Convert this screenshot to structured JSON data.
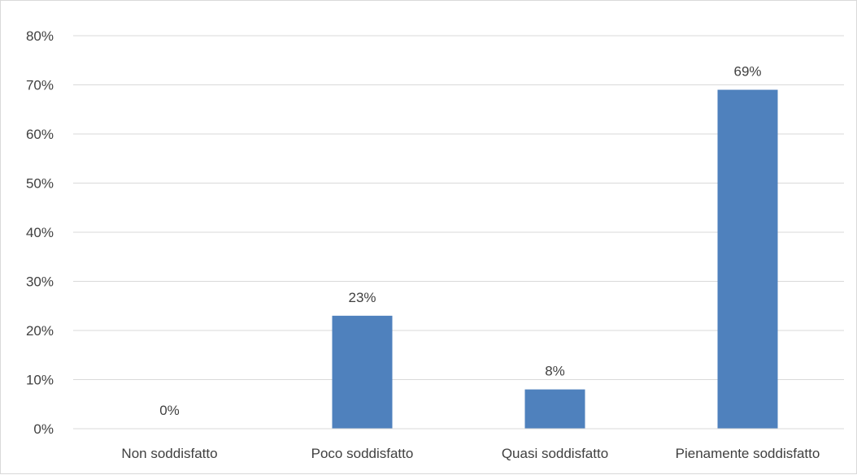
{
  "chart_data": {
    "type": "bar",
    "title": "",
    "xlabel": "",
    "ylabel": "",
    "categories": [
      "Non soddisfatto",
      "Poco soddisfatto",
      "Quasi soddisfatto",
      "Pienamente soddisfatto"
    ],
    "values": [
      0,
      23,
      8,
      69
    ],
    "data_labels": [
      "0%",
      "23%",
      "8%",
      "69%"
    ],
    "ylim": [
      0,
      80
    ],
    "yticks": [
      0,
      10,
      20,
      30,
      40,
      50,
      60,
      70,
      80
    ],
    "ytick_labels": [
      "0%",
      "10%",
      "20%",
      "30%",
      "40%",
      "50%",
      "60%",
      "70%",
      "80%"
    ],
    "grid": true,
    "legend": "none",
    "bar_color": "#4f81bd",
    "grid_color": "#d9d9d9",
    "text_color": "#404040"
  }
}
